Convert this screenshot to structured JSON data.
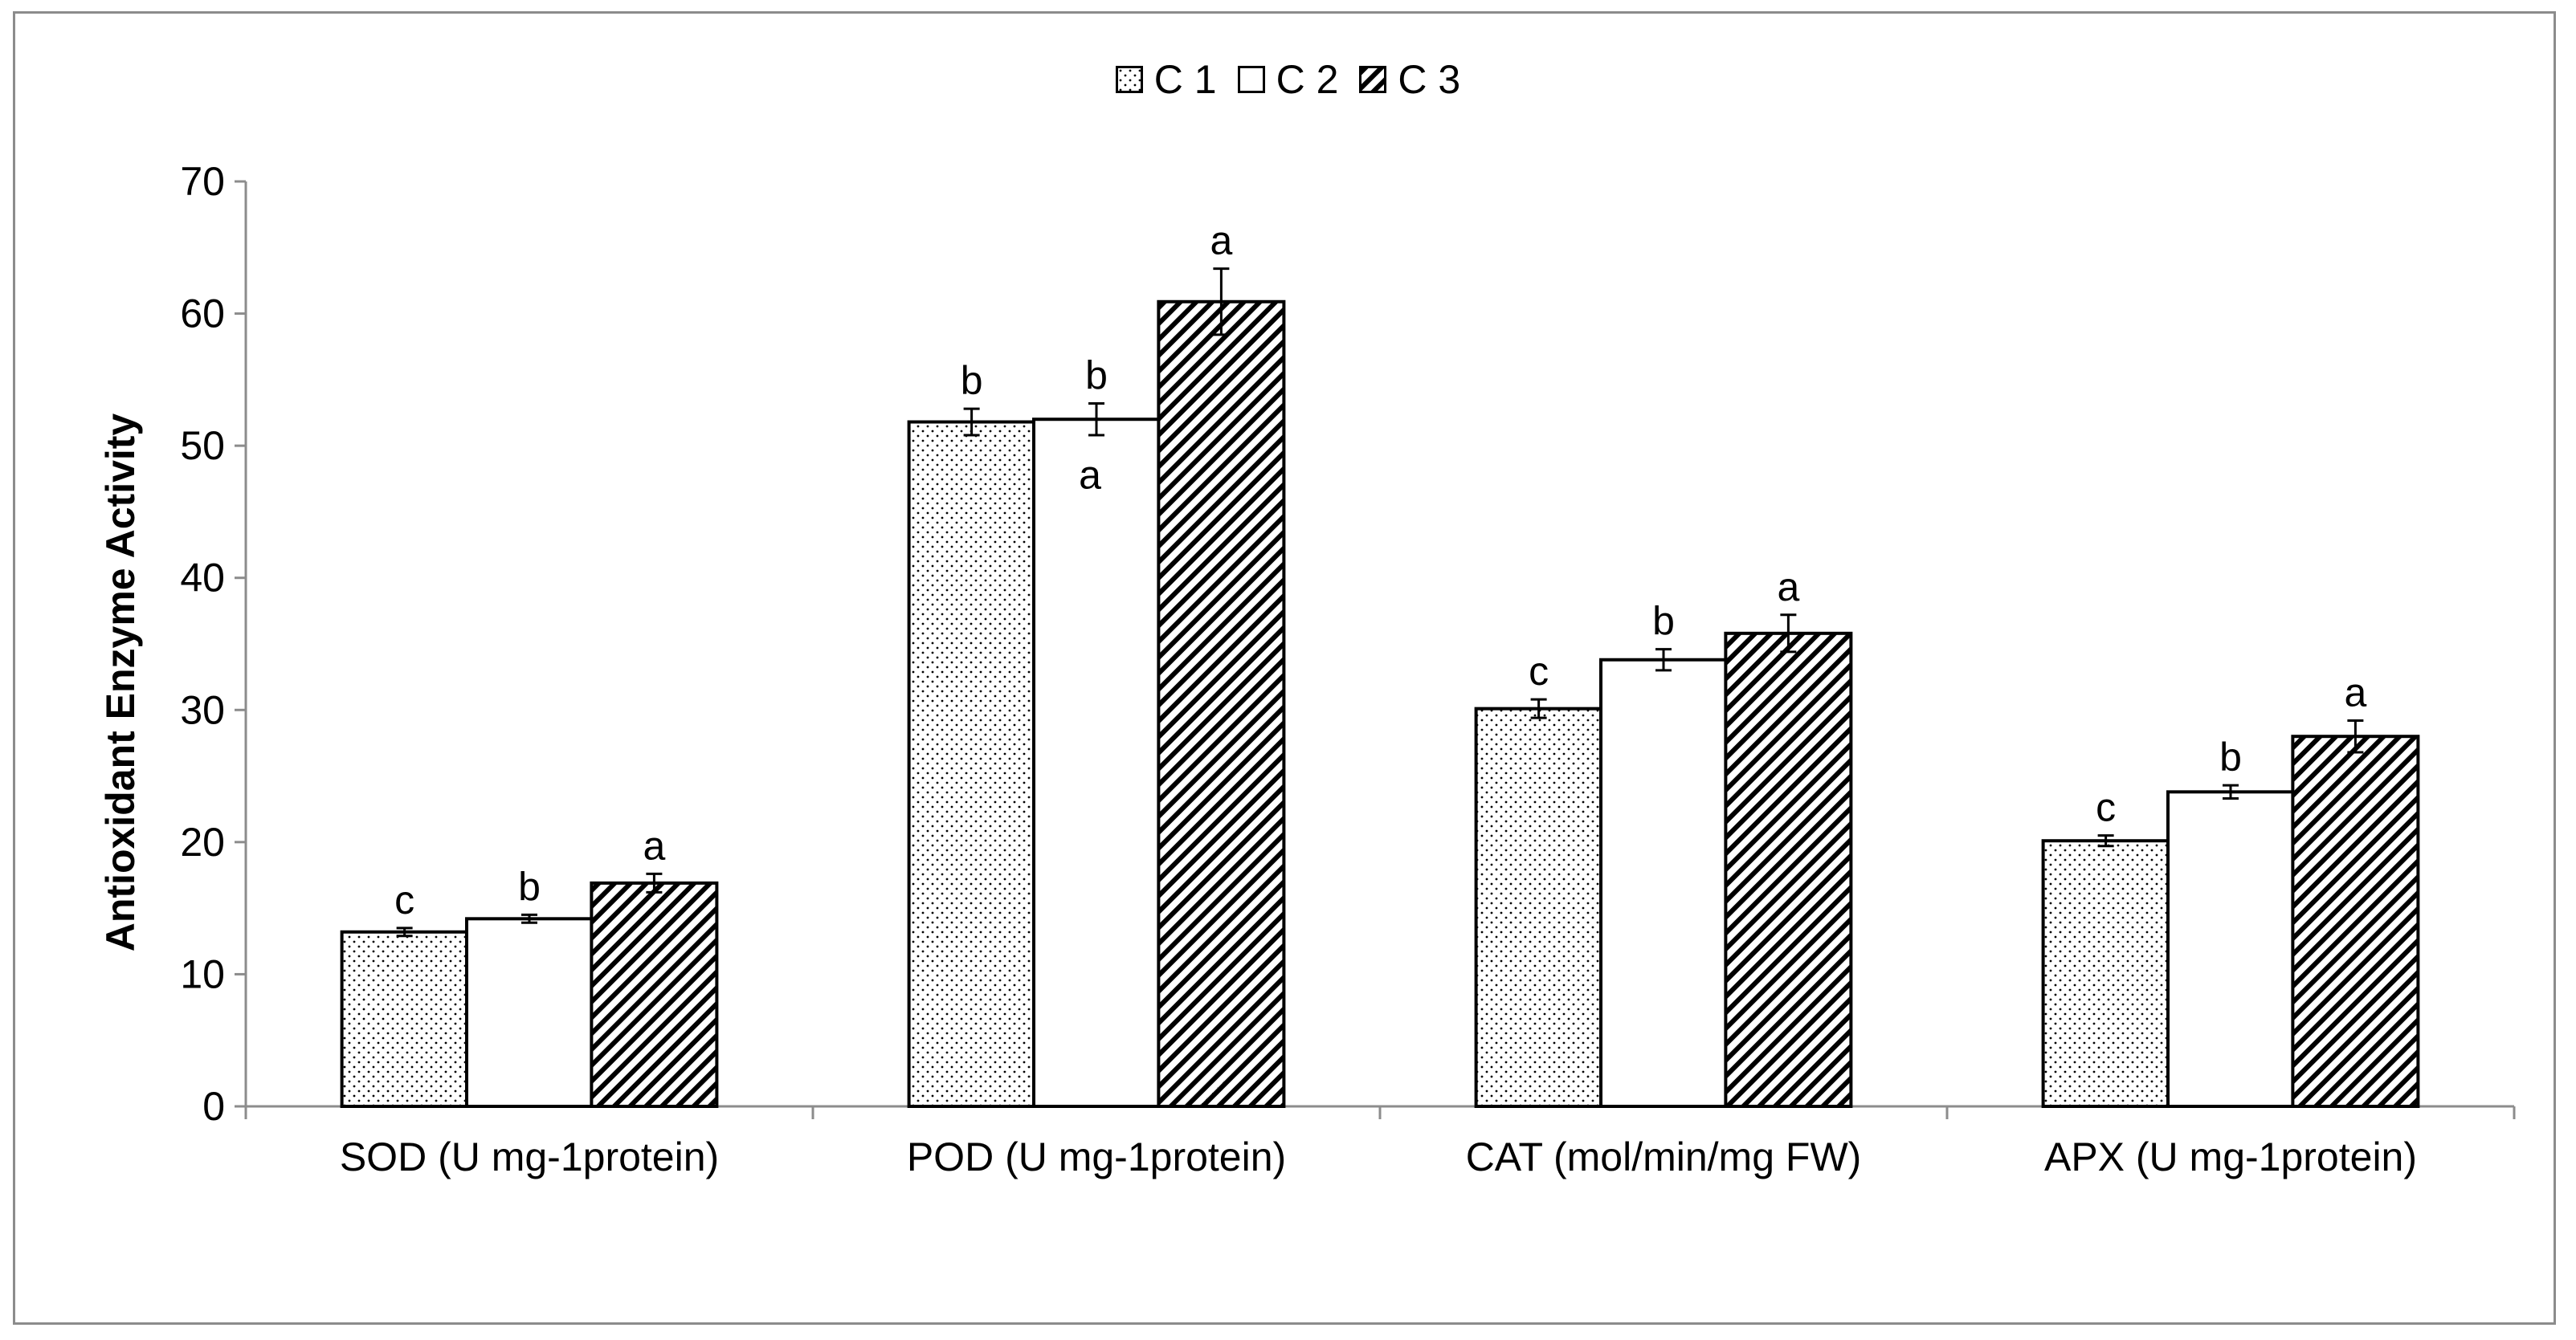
{
  "chart_data": {
    "type": "bar",
    "title": "",
    "xlabel": "",
    "ylabel": "Antioxidant Enzyme Activity",
    "ylim": [
      0,
      70
    ],
    "yticks": [
      0,
      10,
      20,
      30,
      40,
      50,
      60,
      70
    ],
    "categories": [
      "SOD (U mg-1protein)",
      "POD (U mg-1protein)",
      "CAT (mol/min/mg FW)",
      "APX (U mg-1protein)"
    ],
    "series": [
      {
        "name": "C 1",
        "pattern": "dots",
        "values": [
          13.2,
          51.8,
          30.1,
          20.1
        ],
        "errors": [
          0.3,
          1.0,
          0.7,
          0.4
        ],
        "letters": [
          "c",
          "b",
          "c",
          "c"
        ]
      },
      {
        "name": "C 2",
        "pattern": "plain",
        "values": [
          14.2,
          52.0,
          33.8,
          23.8
        ],
        "errors": [
          0.3,
          1.2,
          0.8,
          0.5
        ],
        "letters": [
          "b",
          "b",
          "b",
          "b"
        ]
      },
      {
        "name": "C 3",
        "pattern": "hatch",
        "values": [
          16.9,
          60.9,
          35.8,
          28.0
        ],
        "errors": [
          0.7,
          2.5,
          1.4,
          1.2
        ],
        "letters": [
          "a",
          "a",
          "a",
          "a"
        ]
      }
    ],
    "extra_annotations": [
      {
        "text": "a",
        "category": "POD (U mg-1protein)",
        "y": 49.2
      }
    ],
    "grid": false,
    "legend_position": "top-center"
  },
  "colors": {
    "axis": "#8c8c8c",
    "bar_edge": "#000000",
    "fill": "#ffffff",
    "pattern": "#000000"
  }
}
